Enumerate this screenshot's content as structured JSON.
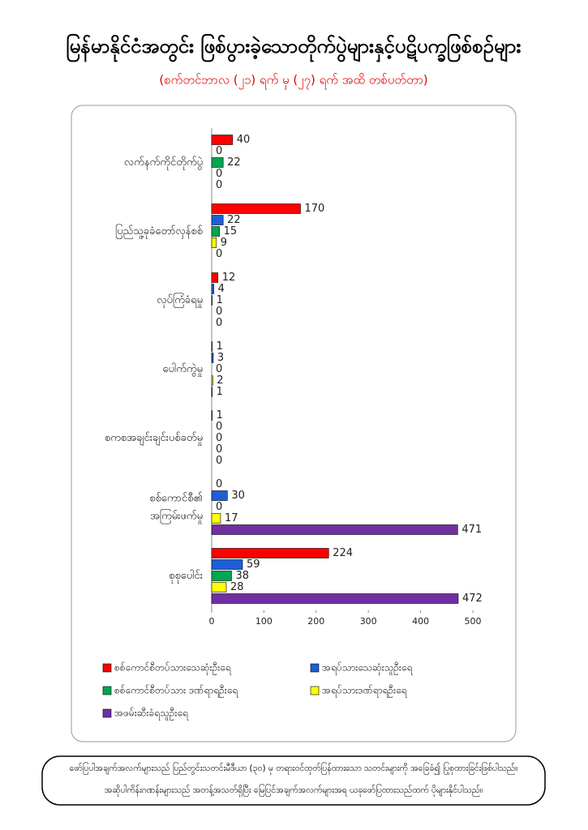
{
  "chart_data": {
    "type": "hbar",
    "title": "မြန်မာနိုင်ငံအတွင်း ဖြစ်ပွားခဲ့သောတိုက်ပွဲများနှင့်ပဋိပက္ခဖြစ်စဉ်များ",
    "subtitle": "(စက်တင်ဘာလ (၂၁) ရက် မှ (၂၇) ရက် အထိ တစ်ပတ်တာ)",
    "categories": [
      "လက်နက်ကိုင်တိုက်ပွဲ",
      "ပြည်သူ့ခုခံတော်လှန်စစ်",
      "လုပ်ကြံခံရမှု",
      "ပေါက်ကွဲမှု",
      "စကစအချင်းချင်းပစ်ခတ်မှု",
      "စစ်ကောင်စီ၏ အကြမ်းဖက်မှု",
      "စုစုပေါင်း"
    ],
    "series": [
      {
        "name": "စစ်ကောင်စီတပ်သားသေဆုံးဦးရေ",
        "color": "#ff0000",
        "values": [
          40,
          170,
          12,
          1,
          1,
          0,
          224
        ]
      },
      {
        "name": "အရပ်သားသေဆုံးသူဦးရေ",
        "color": "#1f5fd6",
        "values": [
          0,
          22,
          4,
          3,
          0,
          30,
          59
        ]
      },
      {
        "name": "စစ်ကောင်စီတပ်သား ဒဏ်ရာရဦးရေ",
        "color": "#00a651",
        "values": [
          22,
          15,
          1,
          0,
          0,
          0,
          38
        ]
      },
      {
        "name": "အရပ်သားဒဏ်ရာရဦးရေ",
        "color": "#ffff00",
        "values": [
          0,
          9,
          0,
          2,
          0,
          17,
          28
        ]
      },
      {
        "name": "အဖမ်းဆီးခံရသူဦးရေ",
        "color": "#7030a0",
        "values": [
          0,
          0,
          0,
          1,
          0,
          471,
          472
        ]
      }
    ],
    "xlim": [
      0,
      500
    ],
    "xticks": [
      0,
      100,
      200,
      300,
      400,
      500
    ]
  },
  "footer": [
    "ဖော်ပြပါအချက်အလက်များသည် ပြည်တွင်းသတင်းမီဒီယာ (၃၀) မှ တရားဝင်ထုတ်ပြန်ထားသော သတင်းများကို အခြေခံ၍ ပြုစုထားခြင်းဖြစ်ပါသည်။",
    "အဆိုပါကိန်းဂဏန်းများသည် အတန့်အသတ်ရှိပြီး မြေပြင်အချက်အလက်များအရ ယခုဖော်ပြထားသည်ထက် ပိုများနိုင်ပါသည်။"
  ]
}
